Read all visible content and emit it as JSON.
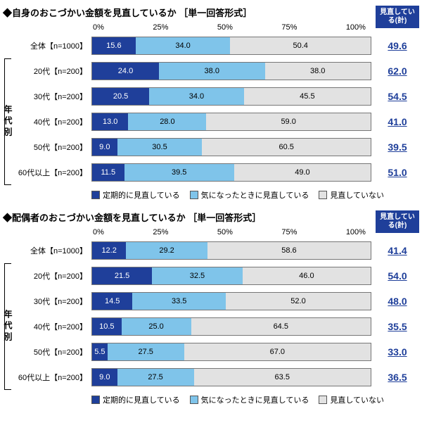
{
  "axis_ticks": [
    "0%",
    "25%",
    "50%",
    "75%",
    "100%"
  ],
  "colors": {
    "dark": "#1f3f9a",
    "light": "#7fc4ea",
    "grey": "#e2e2e2",
    "text_total": "#1f3f9a"
  },
  "legend": {
    "items": [
      "定期的に見直している",
      "気になったときに見直している",
      "見直していない"
    ]
  },
  "age_group_label": "年代別",
  "charts": [
    {
      "title": "◆自身のおこづかい金額を見直しているか ［単一回答形式］",
      "total_header": "見直している(計)",
      "overall": {
        "label": "全体【n=1000】",
        "segments": [
          15.6,
          34.0,
          50.4
        ],
        "total": 49.6
      },
      "age_rows": [
        {
          "label": "20代【n=200】",
          "segments": [
            24.0,
            38.0,
            38.0
          ],
          "total": 62.0
        },
        {
          "label": "30代【n=200】",
          "segments": [
            20.5,
            34.0,
            45.5
          ],
          "total": 54.5
        },
        {
          "label": "40代【n=200】",
          "segments": [
            13.0,
            28.0,
            59.0
          ],
          "total": 41.0
        },
        {
          "label": "50代【n=200】",
          "segments": [
            9.0,
            30.5,
            60.5
          ],
          "total": 39.5
        },
        {
          "label": "60代以上【n=200】",
          "segments": [
            11.5,
            39.5,
            49.0
          ],
          "total": 51.0
        }
      ]
    },
    {
      "title": "◆配偶者のおこづかい金額を見直しているか ［単一回答形式］",
      "total_header": "見直している(計)",
      "overall": {
        "label": "全体【n=1000】",
        "segments": [
          12.2,
          29.2,
          58.6
        ],
        "total": 41.4
      },
      "age_rows": [
        {
          "label": "20代【n=200】",
          "segments": [
            21.5,
            32.5,
            46.0
          ],
          "total": 54.0
        },
        {
          "label": "30代【n=200】",
          "segments": [
            14.5,
            33.5,
            52.0
          ],
          "total": 48.0
        },
        {
          "label": "40代【n=200】",
          "segments": [
            10.5,
            25.0,
            64.5
          ],
          "total": 35.5
        },
        {
          "label": "50代【n=200】",
          "segments": [
            5.5,
            27.5,
            67.0
          ],
          "total": 33.0
        },
        {
          "label": "60代以上【n=200】",
          "segments": [
            9.0,
            27.5,
            63.5
          ],
          "total": 36.5
        }
      ]
    }
  ]
}
